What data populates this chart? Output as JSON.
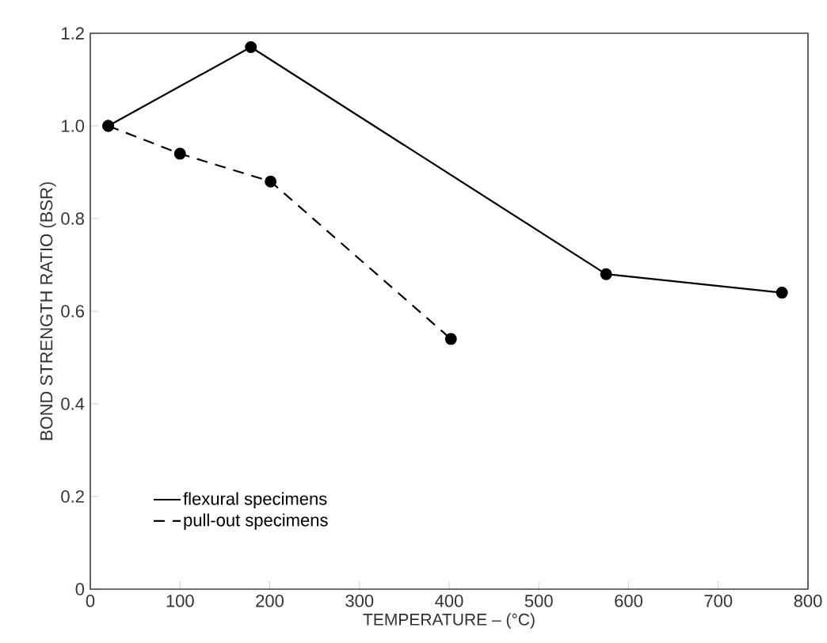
{
  "chart_data": {
    "type": "line",
    "xlabel": "TEMPERATURE – (°C)",
    "ylabel": "BOND STRENGTH RATIO (BSR)",
    "xlim": [
      0,
      800
    ],
    "ylim": [
      0,
      1.2
    ],
    "xticks": [
      0,
      100,
      200,
      300,
      400,
      500,
      600,
      700,
      800
    ],
    "yticks": [
      0,
      0.2,
      0.4,
      0.6,
      0.8,
      {
        "value": 1.0,
        "label": "1.0"
      },
      1.2
    ],
    "marker": "circle",
    "legend": "bottom left",
    "series": [
      {
        "name": "flexural specimens",
        "color": "#000000",
        "line_style": "solid",
        "x": [
          20,
          179,
          575,
          771
        ],
        "values": [
          1.0,
          1.17,
          0.68,
          0.64
        ]
      },
      {
        "name": "pull-out specimens",
        "color": "#000000",
        "line_style": "dashed",
        "x": [
          20,
          100,
          201,
          402
        ],
        "values": [
          1.0,
          0.94,
          0.88,
          0.54
        ]
      }
    ]
  }
}
